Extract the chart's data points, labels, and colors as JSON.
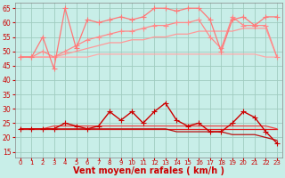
{
  "bg_color": "#c8eee8",
  "grid_color": "#a0ccc0",
  "xlabel": "Vent moyen/en rafales ( km/h )",
  "xlabel_color": "#cc0000",
  "xlabel_fontsize": 7,
  "tick_color": "#cc0000",
  "ylim": [
    13,
    67
  ],
  "xlim": [
    -0.5,
    23.5
  ],
  "yticks": [
    15,
    20,
    25,
    30,
    35,
    40,
    45,
    50,
    55,
    60,
    65
  ],
  "xticks": [
    0,
    1,
    2,
    3,
    4,
    5,
    6,
    7,
    8,
    9,
    10,
    11,
    12,
    13,
    14,
    15,
    16,
    17,
    18,
    19,
    20,
    21,
    22,
    23
  ],
  "lines": [
    {
      "y": [
        48,
        48,
        48,
        48,
        48,
        48,
        48,
        49,
        49,
        49,
        49,
        49,
        49,
        49,
        49,
        49,
        49,
        49,
        49,
        49,
        49,
        49,
        48,
        48
      ],
      "color": "#ffaaaa",
      "marker": null,
      "lw": 0.9,
      "ls": "-",
      "zorder": 2
    },
    {
      "y": [
        48,
        48,
        48,
        48,
        49,
        50,
        51,
        52,
        53,
        53,
        54,
        54,
        55,
        55,
        56,
        56,
        57,
        57,
        57,
        57,
        58,
        58,
        58,
        48
      ],
      "color": "#ff9999",
      "marker": null,
      "lw": 0.9,
      "ls": "-",
      "zorder": 2
    },
    {
      "y": [
        48,
        48,
        50,
        48,
        50,
        52,
        54,
        55,
        56,
        57,
        57,
        58,
        59,
        59,
        60,
        60,
        61,
        55,
        51,
        62,
        59,
        59,
        59,
        48
      ],
      "color": "#ff8888",
      "marker": "+",
      "ms": 4,
      "lw": 0.9,
      "ls": "-",
      "zorder": 3
    },
    {
      "y": [
        48,
        48,
        55,
        44,
        65,
        51,
        61,
        60,
        61,
        62,
        61,
        62,
        65,
        65,
        64,
        65,
        65,
        61,
        50,
        61,
        62,
        59,
        62,
        62
      ],
      "color": "#ff7777",
      "marker": "+",
      "ms": 4,
      "lw": 0.9,
      "ls": "-",
      "zorder": 3
    },
    {
      "y": [
        23,
        23,
        23,
        23,
        25,
        24,
        23,
        24,
        29,
        26,
        29,
        25,
        29,
        32,
        26,
        24,
        25,
        22,
        22,
        25,
        29,
        27,
        22,
        18
      ],
      "color": "#cc0000",
      "marker": "+",
      "ms": 4,
      "lw": 1.0,
      "ls": "-",
      "zorder": 5
    },
    {
      "y": [
        23,
        23,
        23,
        23,
        23,
        23,
        23,
        23,
        23,
        23,
        23,
        23,
        23,
        23,
        23,
        23,
        23,
        23,
        23,
        23,
        23,
        23,
        23,
        23
      ],
      "color": "#dd2222",
      "marker": null,
      "lw": 0.9,
      "ls": "-",
      "zorder": 3
    },
    {
      "y": [
        23,
        23,
        23,
        23,
        23,
        23,
        23,
        23,
        23,
        23,
        23,
        23,
        23,
        23,
        22,
        22,
        22,
        22,
        22,
        21,
        21,
        21,
        20,
        19
      ],
      "color": "#bb1111",
      "marker": null,
      "lw": 0.9,
      "ls": "-",
      "zorder": 3
    },
    {
      "y": [
        23,
        23,
        23,
        24,
        24,
        24,
        24,
        24,
        24,
        24,
        24,
        24,
        24,
        24,
        24,
        24,
        24,
        24,
        24,
        24,
        24,
        24,
        24,
        23
      ],
      "color": "#ee4444",
      "marker": null,
      "lw": 0.9,
      "ls": "-",
      "zorder": 3
    },
    {
      "y": [
        12,
        12,
        12,
        12,
        12,
        12,
        12,
        12,
        12,
        12,
        12,
        12,
        12,
        12,
        12,
        12,
        12,
        12,
        12,
        12,
        12,
        12,
        12,
        12
      ],
      "color": "#ff8888",
      "marker": 4,
      "ms": 3,
      "lw": 0.7,
      "ls": "--",
      "zorder": 1
    }
  ]
}
